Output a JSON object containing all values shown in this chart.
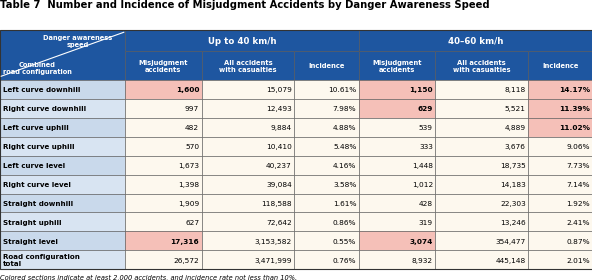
{
  "title": "Table 7  Number and Incidence of Misjudgment Accidents by Danger Awareness Speed",
  "header_bg": "#1e56a0",
  "row_label_bg_even": "#c8d8ec",
  "row_label_bg_odd": "#d8e4f0",
  "data_bg": "#fdf8ee",
  "highlight_pink": "#f5c0b8",
  "total_label_bg": "#c8d8ec",
  "total_data_bg": "#fdf8ee",
  "footnote": "Colored sections indicate at least 2,000 accidents, and incidence rate not less than 10%.",
  "sub_headers": [
    "Misjudgment\naccidents",
    "All accidents\nwith casualties",
    "Incidence",
    "Misjudgment\naccidents",
    "All accidents\nwith casualties",
    "Incidence"
  ],
  "row_labels": [
    "Left curve downhill",
    "Right curve downhill",
    "Left curve uphill",
    "Right curve uphill",
    "Left curve level",
    "Right curve level",
    "Straight downhill",
    "Straight uphill",
    "Straight level",
    "Road configuration\ntotal"
  ],
  "data": [
    [
      "1,600",
      "15,079",
      "10.61%",
      "1,150",
      "8,118",
      "14.17%"
    ],
    [
      "997",
      "12,493",
      "7.98%",
      "629",
      "5,521",
      "11.39%"
    ],
    [
      "482",
      "9,884",
      "4.88%",
      "539",
      "4,889",
      "11.02%"
    ],
    [
      "570",
      "10,410",
      "5.48%",
      "333",
      "3,676",
      "9.06%"
    ],
    [
      "1,673",
      "40,237",
      "4.16%",
      "1,448",
      "18,735",
      "7.73%"
    ],
    [
      "1,398",
      "39,084",
      "3.58%",
      "1,012",
      "14,183",
      "7.14%"
    ],
    [
      "1,909",
      "118,588",
      "1.61%",
      "428",
      "22,303",
      "1.92%"
    ],
    [
      "627",
      "72,642",
      "0.86%",
      "319",
      "13,246",
      "2.41%"
    ],
    [
      "17,316",
      "3,153,582",
      "0.55%",
      "3,074",
      "354,477",
      "0.87%"
    ],
    [
      "26,572",
      "3,471,999",
      "0.76%",
      "8,932",
      "445,148",
      "2.01%"
    ]
  ],
  "pink_cells": {
    "0": [
      0,
      3,
      5
    ],
    "1": [
      3,
      5
    ],
    "2": [
      5
    ],
    "8": [
      0,
      3
    ]
  },
  "col_widths_raw": [
    1.55,
    0.95,
    1.15,
    0.8,
    0.95,
    1.15,
    0.8
  ],
  "group1_cols": [
    1,
    2,
    3
  ],
  "group2_cols": [
    4,
    5,
    6
  ],
  "group1_label": "Up to 40 km/h",
  "group2_label": "40–60 km/h"
}
